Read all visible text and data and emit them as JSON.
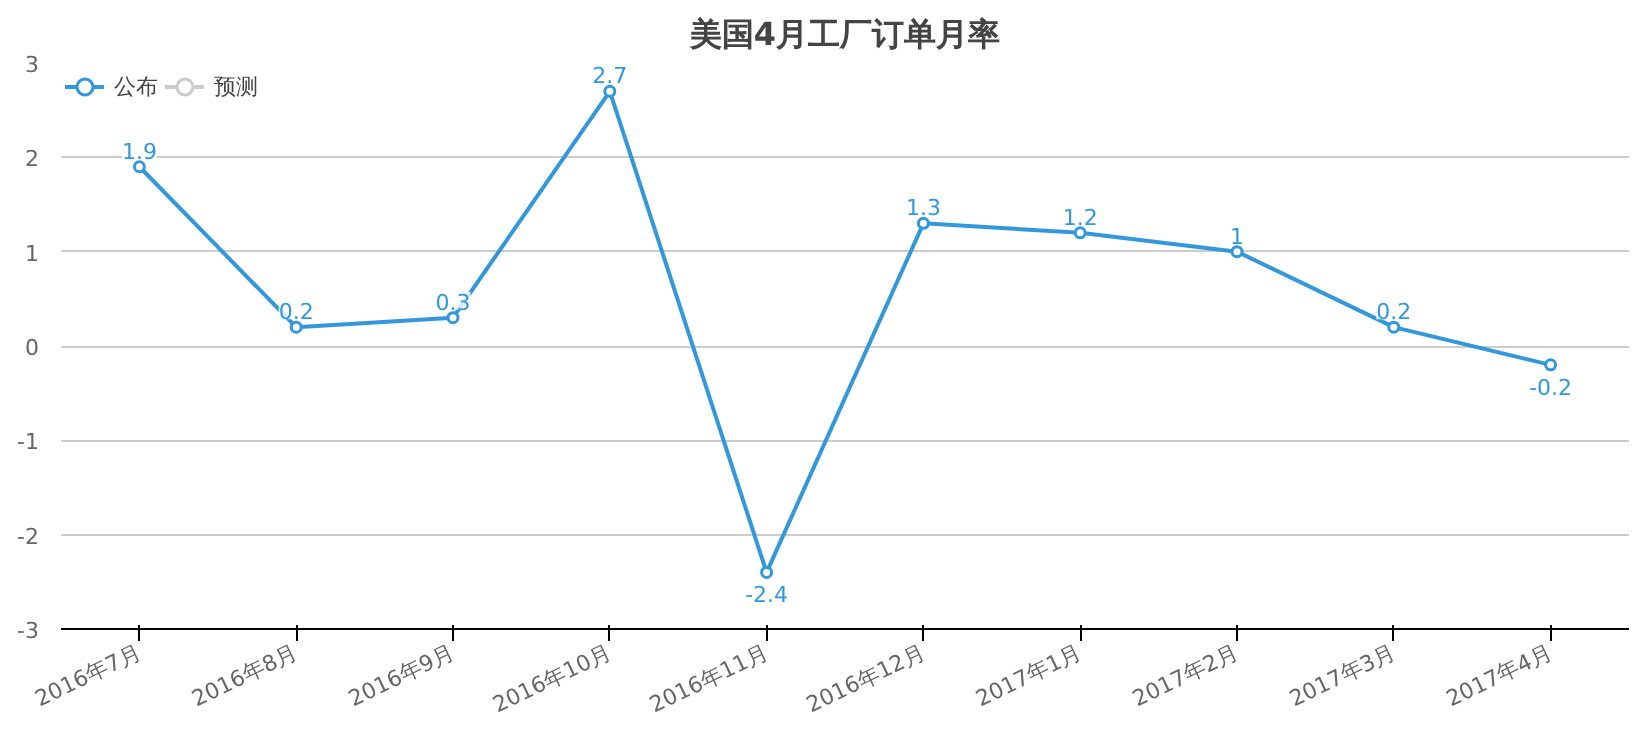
{
  "chart_data": {
    "type": "line",
    "title": "美国4月工厂订单月率",
    "categories": [
      "2016年7月",
      "2016年8月",
      "2016年9月",
      "2016年10月",
      "2016年11月",
      "2016年12月",
      "2017年1月",
      "2017年2月",
      "2017年3月",
      "2017年4月"
    ],
    "series": [
      {
        "name": "公布",
        "color": "#3398db",
        "values": [
          1.9,
          0.2,
          0.3,
          2.7,
          -2.4,
          1.3,
          1.2,
          1,
          0.2,
          -0.2
        ]
      },
      {
        "name": "预测",
        "color": "#cccccc",
        "values": [
          null,
          null,
          null,
          null,
          null,
          null,
          null,
          null,
          null,
          null
        ]
      }
    ],
    "ylim": [
      -3,
      3
    ],
    "yticks": [
      -3,
      -2,
      -1,
      0,
      1,
      2,
      3
    ],
    "grid": "y",
    "legend": "top left",
    "marker": "circle",
    "line_style": "solid",
    "data_labels": true
  }
}
